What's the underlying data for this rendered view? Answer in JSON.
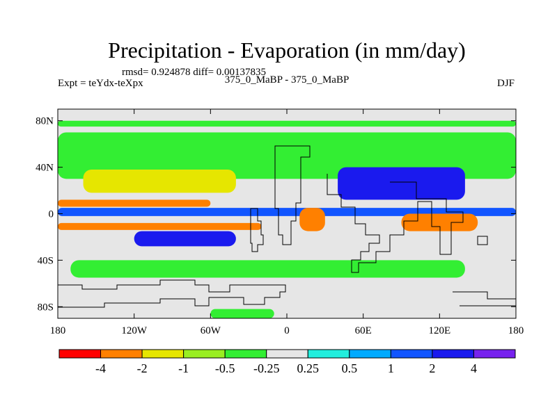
{
  "chart_data": {
    "type": "heatmap",
    "title": "Precipitation - Evaporation (in mm/day)",
    "stats": "rmsd= 0.924878 diff= 0.00137835",
    "left_label": "Expt = teYdx-teXpx",
    "center_label": "375_0_MaBP - 375_0_MaBP",
    "right_label": "DJF",
    "x_axis": {
      "range": [
        -180,
        180
      ],
      "ticks": [
        -180,
        -120,
        -60,
        0,
        60,
        120,
        180
      ],
      "tick_labels": [
        "180",
        "120W",
        "60W",
        "0",
        "60E",
        "120E",
        "180"
      ]
    },
    "y_axis": {
      "range": [
        -90,
        90
      ],
      "ticks": [
        80,
        40,
        0,
        -40,
        -80
      ],
      "tick_labels": [
        "80N",
        "40N",
        "0",
        "40S",
        "80S"
      ]
    },
    "colorbar": {
      "colors": [
        "#ff0000",
        "#ff8000",
        "#e6e600",
        "#99ee22",
        "#33ee33",
        "#e6e6e6",
        "#22eedd",
        "#00aaff",
        "#1155ff",
        "#1a1aee",
        "#7722ee"
      ],
      "levels": [
        -4,
        -2,
        -1,
        -0.5,
        -0.25,
        0.25,
        0.5,
        1,
        2,
        4
      ],
      "level_labels": [
        "-4",
        "-2",
        "-1",
        "-0.5",
        "-0.25",
        "0.25",
        "0.5",
        "1",
        "2",
        "4"
      ]
    },
    "features": [
      {
        "name": "nh-midlat-belt",
        "lon": [
          -180,
          180
        ],
        "lat": [
          30,
          70
        ],
        "value": -0.4
      },
      {
        "name": "nh-arctic-patch",
        "lon": [
          -180,
          180
        ],
        "lat": [
          75,
          80
        ],
        "value": -0.4
      },
      {
        "name": "nh-subtropics-dry",
        "lon": [
          -160,
          -40
        ],
        "lat": [
          18,
          38
        ],
        "value": -1.5
      },
      {
        "name": "nh-orange-band",
        "lon": [
          -180,
          -60
        ],
        "lat": [
          6,
          12
        ],
        "value": -3
      },
      {
        "name": "itcz-wet-band",
        "lon": [
          -180,
          180
        ],
        "lat": [
          -2,
          5
        ],
        "value": 1.5
      },
      {
        "name": "tropical-dry-band",
        "lon": [
          -180,
          -20
        ],
        "lat": [
          -14,
          -8
        ],
        "value": -3
      },
      {
        "name": "sh-tropics-wet",
        "lon": [
          -120,
          -40
        ],
        "lat": [
          -28,
          -15
        ],
        "value": 2.5
      },
      {
        "name": "east-pacific-wet",
        "lon": [
          40,
          140
        ],
        "lat": [
          12,
          40
        ],
        "value": 2.5
      },
      {
        "name": "africa-dry",
        "lon": [
          10,
          30
        ],
        "lat": [
          -15,
          5
        ],
        "value": -3
      },
      {
        "name": "asia-dry",
        "lon": [
          90,
          150
        ],
        "lat": [
          -15,
          0
        ],
        "value": -3
      },
      {
        "name": "sh-midlat-belt",
        "lon": [
          -170,
          140
        ],
        "lat": [
          -55,
          -40
        ],
        "value": -0.4
      },
      {
        "name": "antarctic-wet",
        "lon": [
          -60,
          -10
        ],
        "lat": [
          -90,
          -82
        ],
        "value": -0.4
      }
    ]
  }
}
